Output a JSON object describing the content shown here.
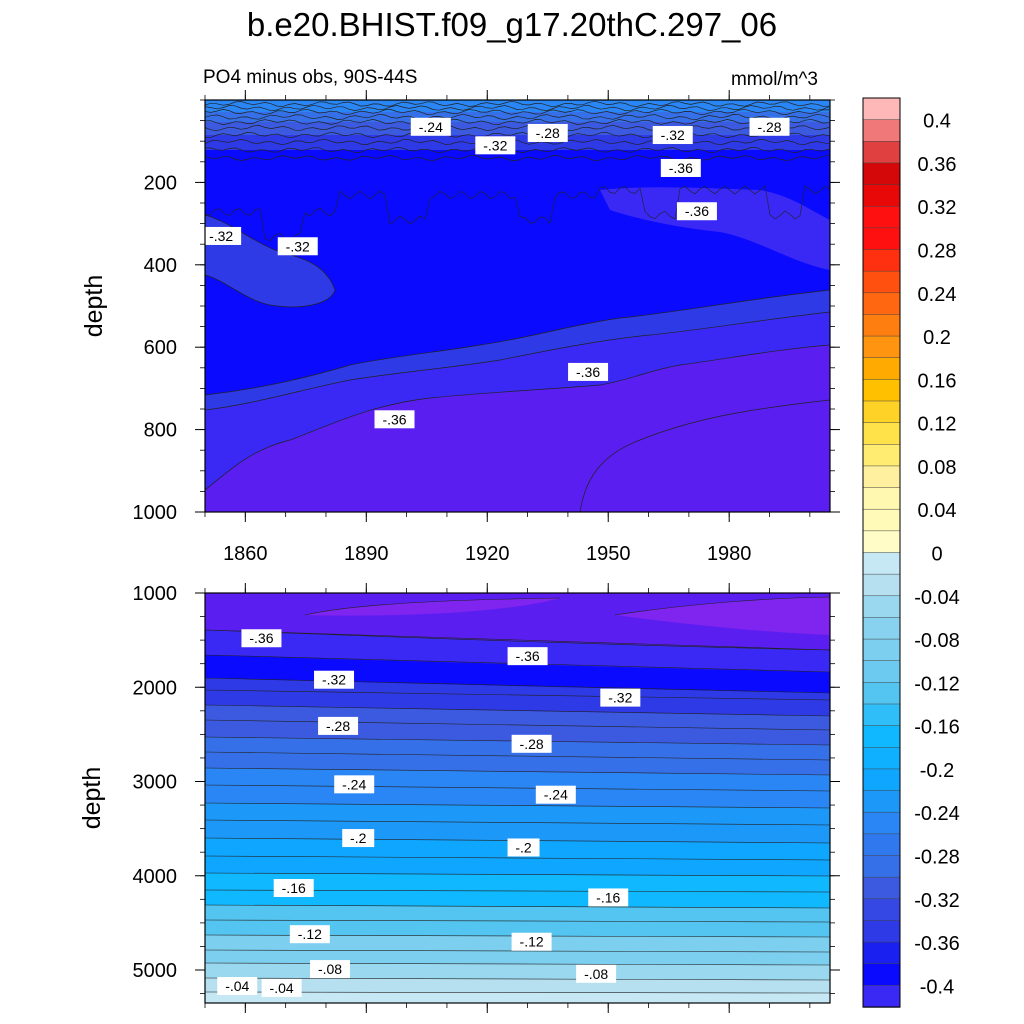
{
  "title": "b.e20.BHIST.f09_g17.20thC.297_06",
  "colors": {
    "levels": [
      "#8024f0",
      "#5a1ef0",
      "#3a28f5",
      "#0a0aff",
      "#2e3ae6",
      "#3b5ae0",
      "#3670e8",
      "#2a86f5",
      "#1c98f8",
      "#0fa6ff",
      "#0fb8ff",
      "#54c4f0",
      "#7dcff0",
      "#9ad8f0",
      "#b6e0f0",
      "#c6e8f5",
      "#fff8b0",
      "#ffec70",
      "#ffe24a",
      "#ffd228",
      "#ffc000",
      "#ffaa00",
      "#ff9410",
      "#ff7e10",
      "#ff6810",
      "#ff5010",
      "#ff3010",
      "#ff1010",
      "#e80808",
      "#d40808",
      "#c61010",
      "#e04040",
      "#f07878",
      "#ffb8b8"
    ],
    "contour_line": "#222222",
    "label_box": "#ffffff"
  },
  "colorbar": {
    "labels": [
      "0.4",
      "0.36",
      "0.32",
      "0.28",
      "0.24",
      "0.2",
      "0.16",
      "0.12",
      "0.08",
      "0.04",
      "0",
      "-0.04",
      "-0.08",
      "-0.12",
      "-0.16",
      "-0.2",
      "-0.24",
      "-0.28",
      "-0.32",
      "-0.36",
      "-0.4"
    ]
  },
  "chart_data": [
    {
      "type": "heatmap",
      "title": "PO4 minus obs, 90S-44S",
      "units": "mmol/m^3",
      "xlabel": "",
      "ylabel": "depth",
      "xlim": [
        1850,
        2005
      ],
      "ylim": [
        1000,
        0
      ],
      "x_ticks": [
        "1860",
        "1890",
        "1920",
        "1950",
        "1980"
      ],
      "y_ticks": [
        "200",
        "400",
        "600",
        "800",
        "1000"
      ],
      "contour_labels": [
        {
          "text": "-.24",
          "x": 1906,
          "depth": 65
        },
        {
          "text": "-.28",
          "x": 1935,
          "depth": 80
        },
        {
          "text": "-.32",
          "x": 1966,
          "depth": 85
        },
        {
          "text": "-.28",
          "x": 1990,
          "depth": 65
        },
        {
          "text": "-.32",
          "x": 1922,
          "depth": 110
        },
        {
          "text": "-.36",
          "x": 1968,
          "depth": 165
        },
        {
          "text": "-.36",
          "x": 1972,
          "depth": 270
        },
        {
          "text": "-.32",
          "x": 1854,
          "depth": 330
        },
        {
          "text": "-.32",
          "x": 1873,
          "depth": 355
        },
        {
          "text": "-.36",
          "x": 1945,
          "depth": 660
        },
        {
          "text": "-.36",
          "x": 1897,
          "depth": 775
        }
      ],
      "regions": [
        {
          "level": -0.36,
          "description": "deep band below ~650-800 m, deepening to ~1000 m in west"
        },
        {
          "level": -0.32,
          "description": "middle layer 100-700 m"
        },
        {
          "level": -0.28,
          "description": "thin surface layer 0-100 m"
        }
      ]
    },
    {
      "type": "heatmap",
      "title": "",
      "xlabel": "",
      "ylabel": "depth",
      "xlim": [
        1850,
        2005
      ],
      "ylim": [
        5350,
        1000
      ],
      "y_ticks": [
        "1000",
        "2000",
        "3000",
        "4000",
        "5000"
      ],
      "contour_labels": [
        {
          "text": "-.36",
          "x": 1864,
          "depth": 1480
        },
        {
          "text": "-.36",
          "x": 1930,
          "depth": 1670
        },
        {
          "text": "-.32",
          "x": 1882,
          "depth": 1920
        },
        {
          "text": "-.32",
          "x": 1953,
          "depth": 2110
        },
        {
          "text": "-.28",
          "x": 1883,
          "depth": 2410
        },
        {
          "text": "-.28",
          "x": 1931,
          "depth": 2600
        },
        {
          "text": "-.24",
          "x": 1887,
          "depth": 3030
        },
        {
          "text": "-.24",
          "x": 1937,
          "depth": 3140
        },
        {
          "text": "-.2",
          "x": 1888,
          "depth": 3600
        },
        {
          "text": "-.2",
          "x": 1929,
          "depth": 3700
        },
        {
          "text": "-.16",
          "x": 1872,
          "depth": 4130
        },
        {
          "text": "-.16",
          "x": 1950,
          "depth": 4230
        },
        {
          "text": "-.12",
          "x": 1876,
          "depth": 4620
        },
        {
          "text": "-.12",
          "x": 1931,
          "depth": 4700
        },
        {
          "text": "-.08",
          "x": 1881,
          "depth": 4990
        },
        {
          "text": "-.08",
          "x": 1947,
          "depth": 5040
        },
        {
          "text": "-.04",
          "x": 1858,
          "depth": 5170
        },
        {
          "text": "-.04",
          "x": 1869,
          "depth": 5190
        }
      ],
      "regions": [
        {
          "level": -0.4,
          "description": "core near 1000-1500 m"
        },
        {
          "level": -0.04,
          "description": "near bottom ~5300 m"
        }
      ]
    }
  ]
}
